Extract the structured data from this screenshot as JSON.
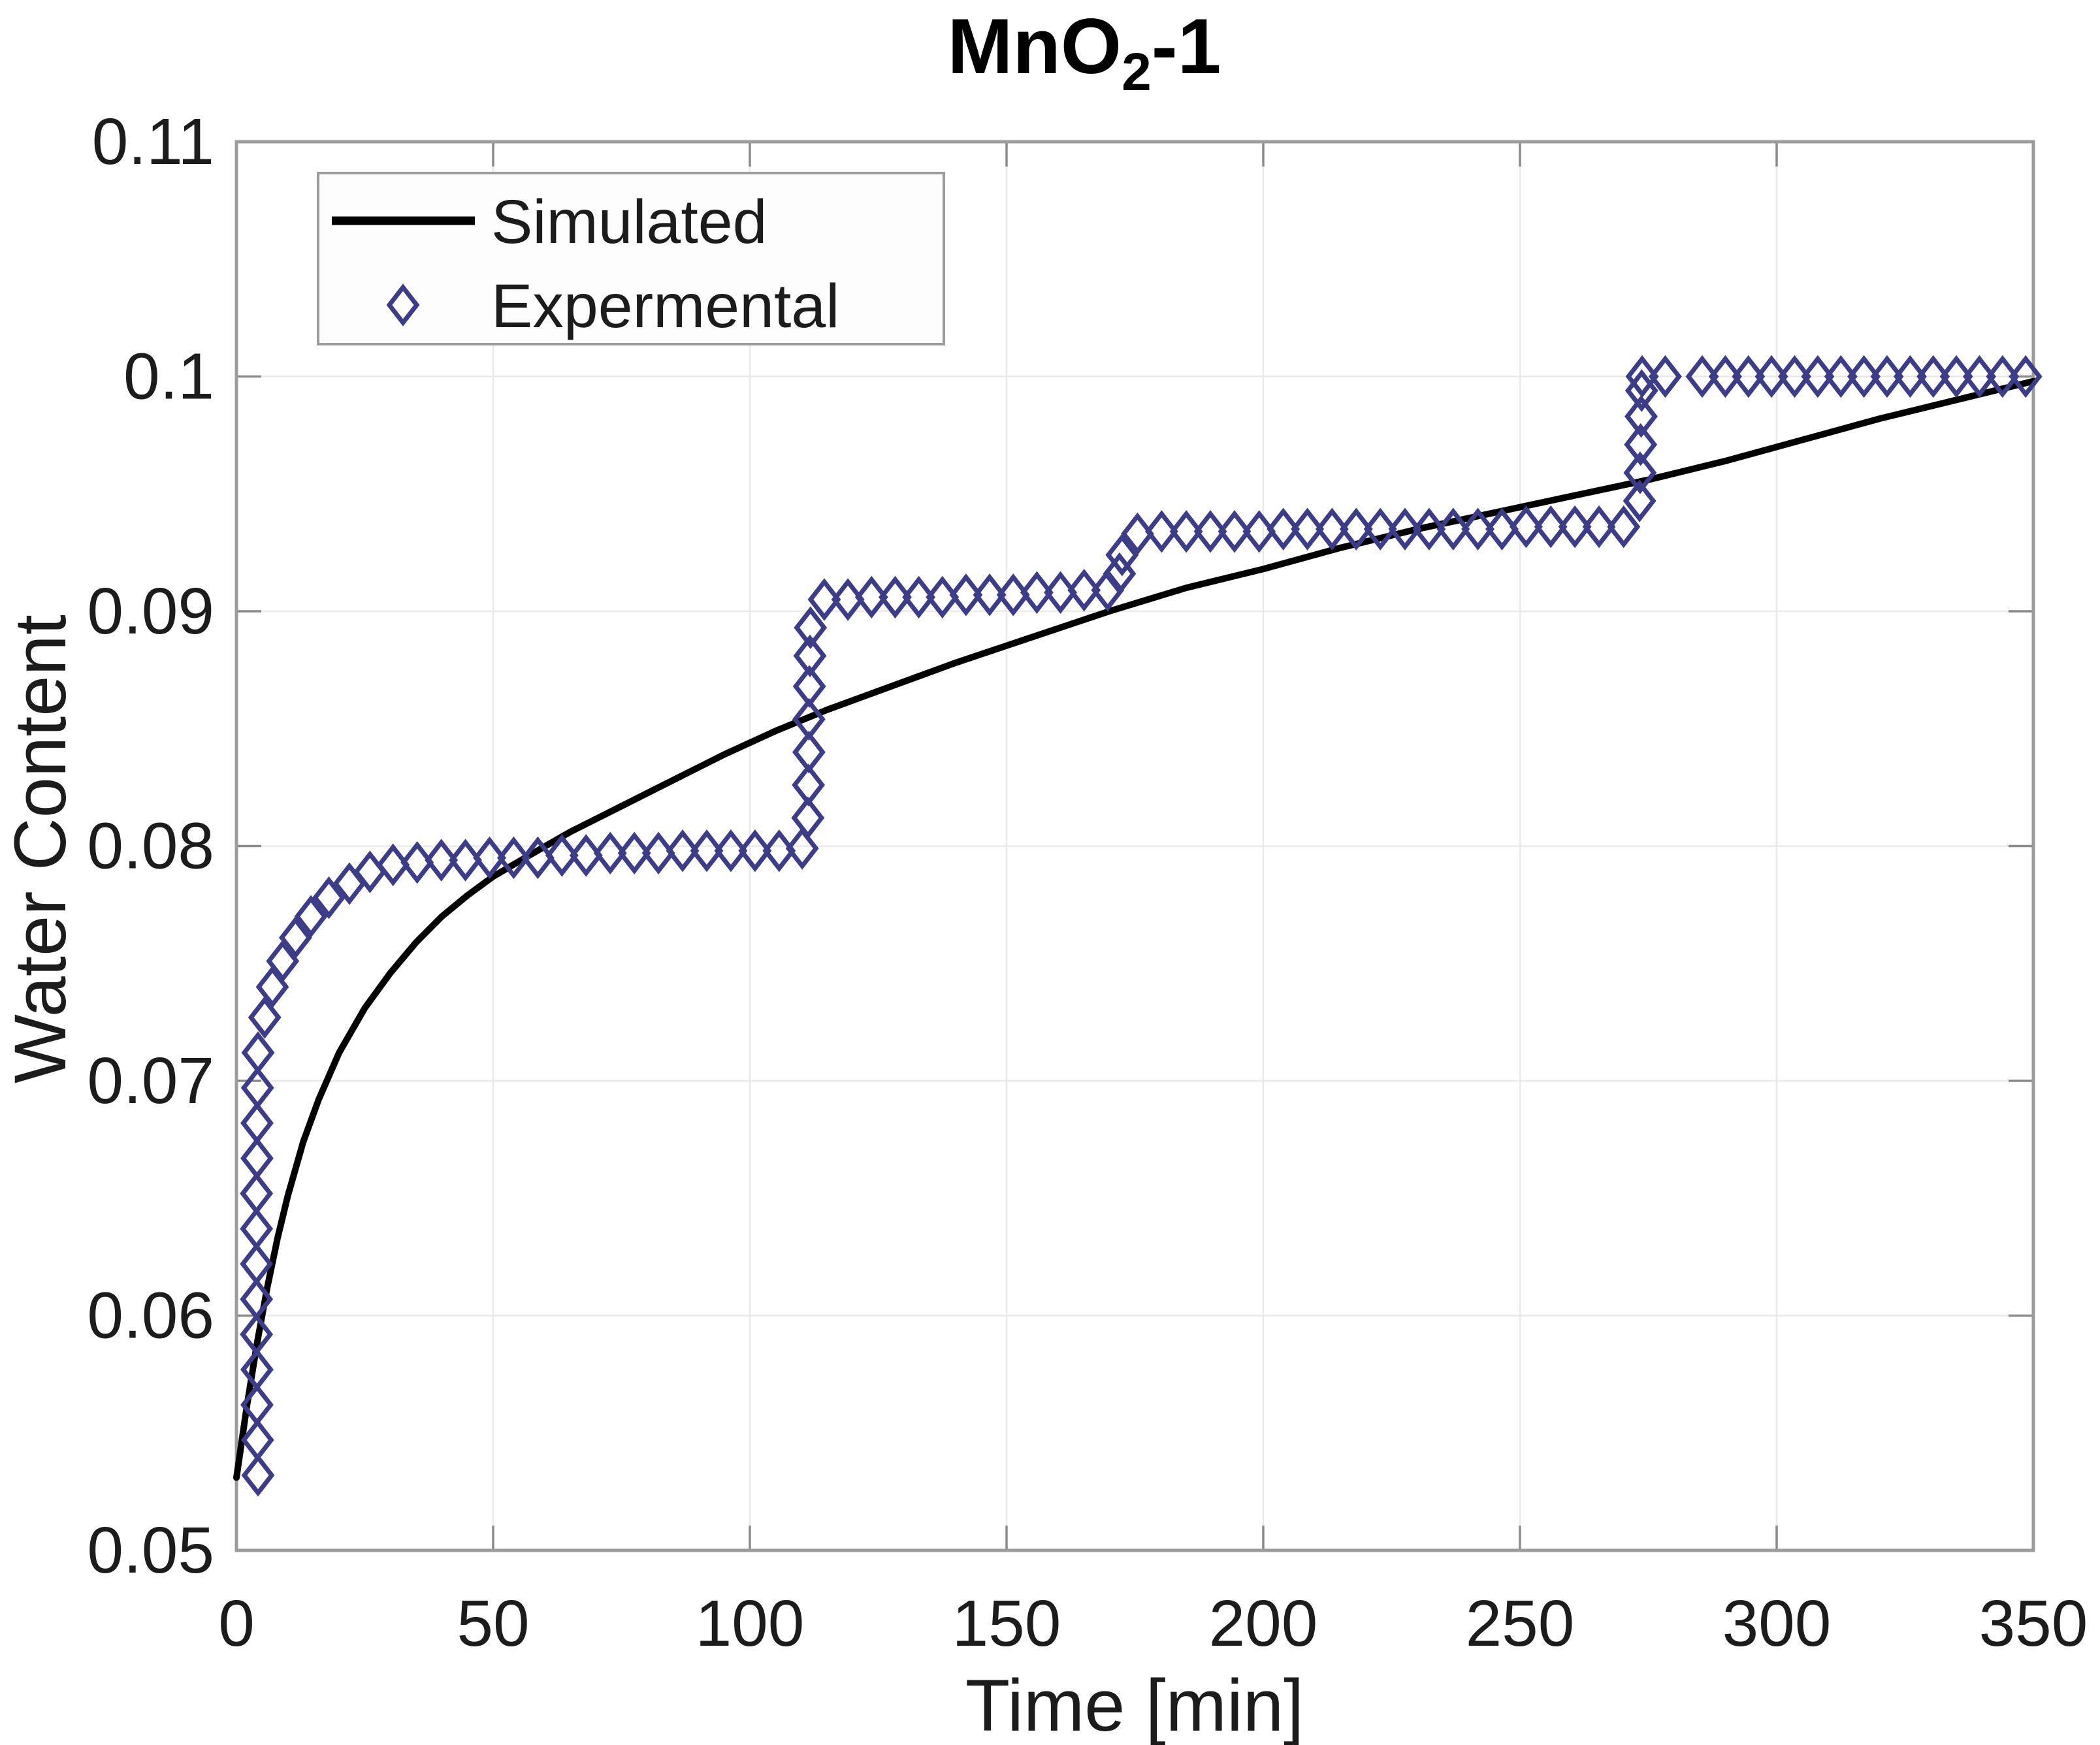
{
  "page": {
    "background": "#ffffff"
  },
  "style": {
    "grid_color": "#e9e9e9",
    "axis_color": "#9c9c9c",
    "tick_color": "#8a8a8a",
    "text_color": "#1c1c1c",
    "plot_background": "#ffffff",
    "legend_border_color": "#9c9c9c",
    "legend_background": "#fdfdfd"
  },
  "chart_data": {
    "type": "line",
    "title": "MnO₂-1",
    "title_parts": {
      "prefix": "MnO",
      "subscript": "2",
      "suffix": "-1"
    },
    "xlabel": "Time [min]",
    "ylabel": "Water Content",
    "xlim": [
      0,
      350
    ],
    "ylim": [
      0.05,
      0.11
    ],
    "xticks": [
      0,
      50,
      100,
      150,
      200,
      250,
      300,
      350
    ],
    "xtick_labels": [
      "0",
      "50",
      "100",
      "150",
      "200",
      "250",
      "300",
      "350"
    ],
    "yticks": [
      0.05,
      0.06,
      0.07,
      0.08,
      0.09,
      0.1,
      0.11
    ],
    "ytick_labels": [
      "0.05",
      "0.06",
      "0.07",
      "0.08",
      "0.09",
      "0.1",
      "0.11"
    ],
    "grid": true,
    "legend": {
      "position": "top-left",
      "entries": [
        {
          "label": "Simulated",
          "sample": "line",
          "color": "#000000"
        },
        {
          "label": "Expermental",
          "sample": "diamond",
          "color": "#3C3C87"
        }
      ]
    },
    "series": [
      {
        "name": "Simulated",
        "type": "line",
        "color": "#000000",
        "line_width": 10,
        "points": [
          [
            0,
            0.0531
          ],
          [
            2,
            0.0561
          ],
          [
            4,
            0.0588
          ],
          [
            6,
            0.0612
          ],
          [
            8,
            0.0633
          ],
          [
            10,
            0.0651
          ],
          [
            13,
            0.0674
          ],
          [
            16,
            0.0692
          ],
          [
            20,
            0.0712
          ],
          [
            25,
            0.0731
          ],
          [
            30,
            0.0746
          ],
          [
            35,
            0.0759
          ],
          [
            40,
            0.077
          ],
          [
            45,
            0.0779
          ],
          [
            50,
            0.0787
          ],
          [
            57,
            0.0796
          ],
          [
            65,
            0.0806
          ],
          [
            75,
            0.0817
          ],
          [
            85,
            0.0828
          ],
          [
            95,
            0.0839
          ],
          [
            105,
            0.0849
          ],
          [
            115,
            0.0858
          ],
          [
            125,
            0.0866
          ],
          [
            140,
            0.0878
          ],
          [
            155,
            0.0889
          ],
          [
            170,
            0.09
          ],
          [
            185,
            0.091
          ],
          [
            200,
            0.0918
          ],
          [
            215,
            0.0927
          ],
          [
            230,
            0.0935
          ],
          [
            245,
            0.0942
          ],
          [
            260,
            0.0949
          ],
          [
            275,
            0.0956
          ],
          [
            290,
            0.0964
          ],
          [
            305,
            0.0973
          ],
          [
            320,
            0.0982
          ],
          [
            335,
            0.099
          ],
          [
            350,
            0.0998
          ]
        ]
      },
      {
        "name": "Expermental",
        "type": "scatter",
        "marker": "diamond",
        "color": "#3C3C87",
        "marker_rx": 21,
        "marker_ry": 27,
        "marker_stroke": 7,
        "points": [
          [
            4.2,
            0.0532
          ],
          [
            4.1,
            0.0547
          ],
          [
            4.0,
            0.0562
          ],
          [
            4.0,
            0.0577
          ],
          [
            3.9,
            0.0592
          ],
          [
            3.9,
            0.0607
          ],
          [
            3.9,
            0.0622
          ],
          [
            3.9,
            0.0637
          ],
          [
            3.9,
            0.0652
          ],
          [
            4.0,
            0.0667
          ],
          [
            4.0,
            0.0682
          ],
          [
            4.1,
            0.0697
          ],
          [
            4.2,
            0.0712
          ],
          [
            5.5,
            0.0727
          ],
          [
            7.0,
            0.074
          ],
          [
            9.0,
            0.0751
          ],
          [
            11.5,
            0.0761
          ],
          [
            14.5,
            0.077
          ],
          [
            18.0,
            0.0778
          ],
          [
            22.0,
            0.0784
          ],
          [
            26.0,
            0.0789
          ],
          [
            30.5,
            0.0792
          ],
          [
            35.2,
            0.0793
          ],
          [
            39.9,
            0.0794
          ],
          [
            44.6,
            0.0794
          ],
          [
            49.3,
            0.0795
          ],
          [
            54.0,
            0.0795
          ],
          [
            58.7,
            0.0795
          ],
          [
            63.4,
            0.0796
          ],
          [
            68.1,
            0.0796
          ],
          [
            72.8,
            0.0797
          ],
          [
            77.5,
            0.0797
          ],
          [
            82.2,
            0.0797
          ],
          [
            86.9,
            0.0798
          ],
          [
            91.6,
            0.0798
          ],
          [
            96.3,
            0.0798
          ],
          [
            101.0,
            0.0798
          ],
          [
            105.7,
            0.0798
          ],
          [
            110.2,
            0.0799
          ],
          [
            111.3,
            0.0812
          ],
          [
            111.4,
            0.0826
          ],
          [
            111.5,
            0.084
          ],
          [
            111.5,
            0.0854
          ],
          [
            111.6,
            0.0868
          ],
          [
            111.7,
            0.0881
          ],
          [
            111.8,
            0.0893
          ],
          [
            114.5,
            0.0905
          ],
          [
            119.1,
            0.0905
          ],
          [
            123.7,
            0.0906
          ],
          [
            128.3,
            0.0906
          ],
          [
            132.9,
            0.0906
          ],
          [
            137.5,
            0.0906
          ],
          [
            142.1,
            0.0907
          ],
          [
            146.7,
            0.0907
          ],
          [
            151.3,
            0.0907
          ],
          [
            155.9,
            0.0908
          ],
          [
            160.5,
            0.0908
          ],
          [
            165.1,
            0.0909
          ],
          [
            169.7,
            0.0909
          ],
          [
            172.0,
            0.0916
          ],
          [
            172.5,
            0.0924
          ],
          [
            175.5,
            0.0933
          ],
          [
            180.2,
            0.0934
          ],
          [
            185.0,
            0.0934
          ],
          [
            189.7,
            0.0934
          ],
          [
            194.4,
            0.0934
          ],
          [
            199.2,
            0.0934
          ],
          [
            203.9,
            0.0935
          ],
          [
            208.6,
            0.0935
          ],
          [
            213.4,
            0.0935
          ],
          [
            218.1,
            0.0935
          ],
          [
            222.8,
            0.0935
          ],
          [
            227.6,
            0.0935
          ],
          [
            232.3,
            0.0935
          ],
          [
            237.0,
            0.0935
          ],
          [
            241.8,
            0.0935
          ],
          [
            246.5,
            0.0935
          ],
          [
            251.2,
            0.0936
          ],
          [
            256.0,
            0.0936
          ],
          [
            260.7,
            0.0936
          ],
          [
            265.4,
            0.0936
          ],
          [
            270.2,
            0.0936
          ],
          [
            273.3,
            0.0947
          ],
          [
            273.4,
            0.0959
          ],
          [
            273.5,
            0.0971
          ],
          [
            273.6,
            0.0983
          ],
          [
            273.7,
            0.0994
          ],
          [
            273.8,
            0.1
          ],
          [
            278.3,
            0.1
          ],
          [
            285.5,
            0.1
          ],
          [
            290.0,
            0.1
          ],
          [
            294.5,
            0.1
          ],
          [
            299.0,
            0.1
          ],
          [
            303.5,
            0.1
          ],
          [
            308.0,
            0.1
          ],
          [
            312.5,
            0.1
          ],
          [
            317.0,
            0.1
          ],
          [
            321.5,
            0.1
          ],
          [
            326.0,
            0.1
          ],
          [
            330.5,
            0.1
          ],
          [
            335.0,
            0.1
          ],
          [
            339.5,
            0.1
          ],
          [
            344.0,
            0.1
          ],
          [
            348.5,
            0.1
          ]
        ]
      }
    ]
  }
}
